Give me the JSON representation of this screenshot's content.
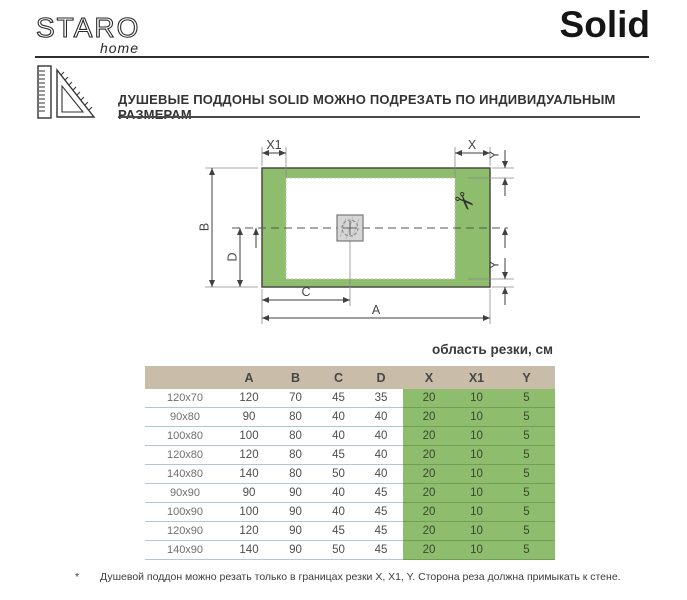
{
  "brand": {
    "name": "STARO",
    "sub": "home"
  },
  "title": "Solid",
  "banner": {
    "text": "ДУШЕВЫЕ ПОДДОНЫ SOLID МОЖНО ПОДРЕЗАТЬ ПО ИНДИВИДУАЛЬНЫМ РАЗМЕРАМ",
    "icon": "ruler-triangle-icon"
  },
  "diagram": {
    "type": "dimension-drawing",
    "labels": {
      "A": "A",
      "B": "B",
      "C": "C",
      "D": "D",
      "X": "X",
      "X1": "X1",
      "Y_top": "Y",
      "Y_bottom": "Y"
    },
    "scissors_glyph": "✂",
    "colors": {
      "tray_green": "#8dbd6d",
      "outline": "#4b4b43"
    }
  },
  "cut_table": {
    "caption": "область резки, см",
    "columns": [
      "",
      "A",
      "B",
      "C",
      "D",
      "X",
      "X1",
      "Y"
    ],
    "rows": [
      [
        "120x70",
        "120",
        "70",
        "45",
        "35",
        "20",
        "10",
        "5"
      ],
      [
        "90x80",
        "90",
        "80",
        "40",
        "40",
        "20",
        "10",
        "5"
      ],
      [
        "100x80",
        "100",
        "80",
        "40",
        "40",
        "20",
        "10",
        "5"
      ],
      [
        "120x80",
        "120",
        "80",
        "45",
        "40",
        "20",
        "10",
        "5"
      ],
      [
        "140x80",
        "140",
        "80",
        "50",
        "40",
        "20",
        "10",
        "5"
      ],
      [
        "90x90",
        "90",
        "90",
        "40",
        "45",
        "20",
        "10",
        "5"
      ],
      [
        "100x90",
        "100",
        "90",
        "40",
        "45",
        "20",
        "10",
        "5"
      ],
      [
        "120x90",
        "120",
        "90",
        "45",
        "45",
        "20",
        "10",
        "5"
      ],
      [
        "140x90",
        "140",
        "90",
        "50",
        "45",
        "20",
        "10",
        "5"
      ]
    ],
    "green_columns": [
      "X",
      "X1",
      "Y"
    ],
    "colors": {
      "header_bg": "#c9bdaa",
      "green_bg": "#8dbd6d",
      "row_line": "#aec9d2",
      "green_row_line": "#6fa155"
    }
  },
  "footnote": {
    "marker": "*",
    "text": "Душевой поддон можно резать только в границах резки X, X1, Y. Сторона реза должна примыкать к стене."
  }
}
